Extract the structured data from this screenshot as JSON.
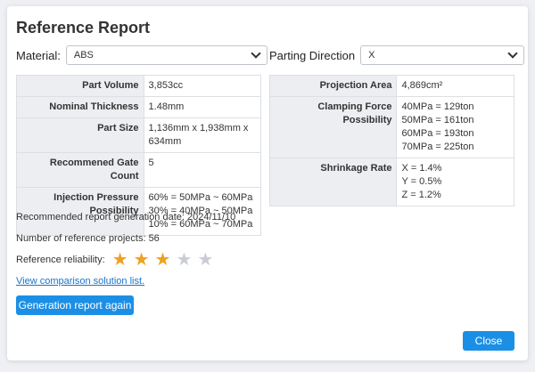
{
  "title": "Reference Report",
  "material": {
    "label": "Material:",
    "value": "ABS"
  },
  "parting": {
    "label": "Parting Direction",
    "value": "X"
  },
  "left_table": [
    {
      "key": "Part Volume",
      "value": "3,853cc"
    },
    {
      "key": "Nominal Thickness",
      "value": "1.48mm"
    },
    {
      "key": "Part Size",
      "value": "1,136mm x 1,938mm x 634mm"
    },
    {
      "key": "Recommened Gate Count",
      "value": "5"
    },
    {
      "key": "Injection Pressure Possibility",
      "lines": [
        "60% = 50MPa ~ 60MPa",
        "30% = 40MPa ~ 50MPa",
        "10% = 60MPa ~ 70MPa"
      ]
    }
  ],
  "right_table": [
    {
      "key": "Projection Area",
      "value": "4,869cm²"
    },
    {
      "key": "Clamping Force Possibility",
      "lines": [
        "40MPa = 129ton",
        "50MPa = 161ton",
        "60MPa = 193ton",
        "70MPa = 225ton"
      ]
    },
    {
      "key": "Shrinkage Rate",
      "lines": [
        "X = 1.4%",
        "Y = 0.5%",
        "Z = 1.2%"
      ]
    }
  ],
  "report_date": "Recommended report generation date: 2024/11/10",
  "project_count": "Number of reference projects: 56",
  "reliability": {
    "label": "Reference reliability:",
    "rating": 3,
    "max": 5,
    "star_filled_color": "#f0a020",
    "star_empty_color": "#c9ccd2"
  },
  "link_text": "View comparison solution list.",
  "generate_button": "Generation report again",
  "close_button": "Close",
  "colors": {
    "accent": "#1b8fe6"
  }
}
